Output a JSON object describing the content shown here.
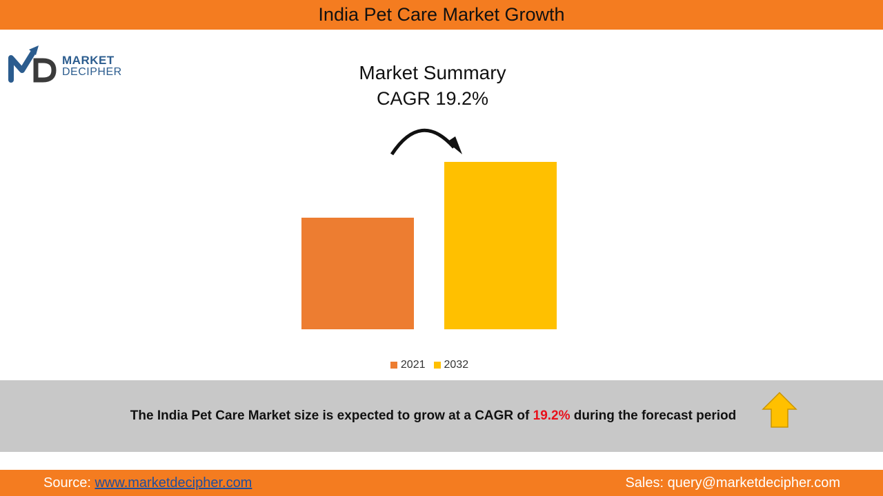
{
  "header": {
    "title": "India Pet Care Market Growth"
  },
  "logo": {
    "line1": "MARKET",
    "line2": "DECIPHER"
  },
  "summary": {
    "heading": "Market Summary",
    "cagr": "CAGR 19.2%"
  },
  "chart_data": {
    "type": "bar",
    "title": "",
    "categories": [
      "2021",
      "2032"
    ],
    "series": [
      {
        "name": "2021",
        "values": [
          100,
          null
        ],
        "color": "#ED7D31"
      },
      {
        "name": "2032",
        "values": [
          null,
          150
        ],
        "color": "#FFC000"
      }
    ],
    "legend_position": "bottom",
    "grid": false,
    "ylim": [
      0,
      150
    ]
  },
  "band": {
    "text_before": "The India Pet Care Market size is expected to grow at a CAGR of ",
    "cagr": "19.2%",
    "text_after": " during the forecast period"
  },
  "footer": {
    "source_label": "Source: ",
    "source_link": "www.marketdecipher.com",
    "sales": "Sales: query@marketdecipher.com"
  },
  "colors": {
    "header_bar": "#F47C20",
    "band": "#C8C8C8",
    "highlight": "#E8101A",
    "arrow": "#FFC000"
  }
}
